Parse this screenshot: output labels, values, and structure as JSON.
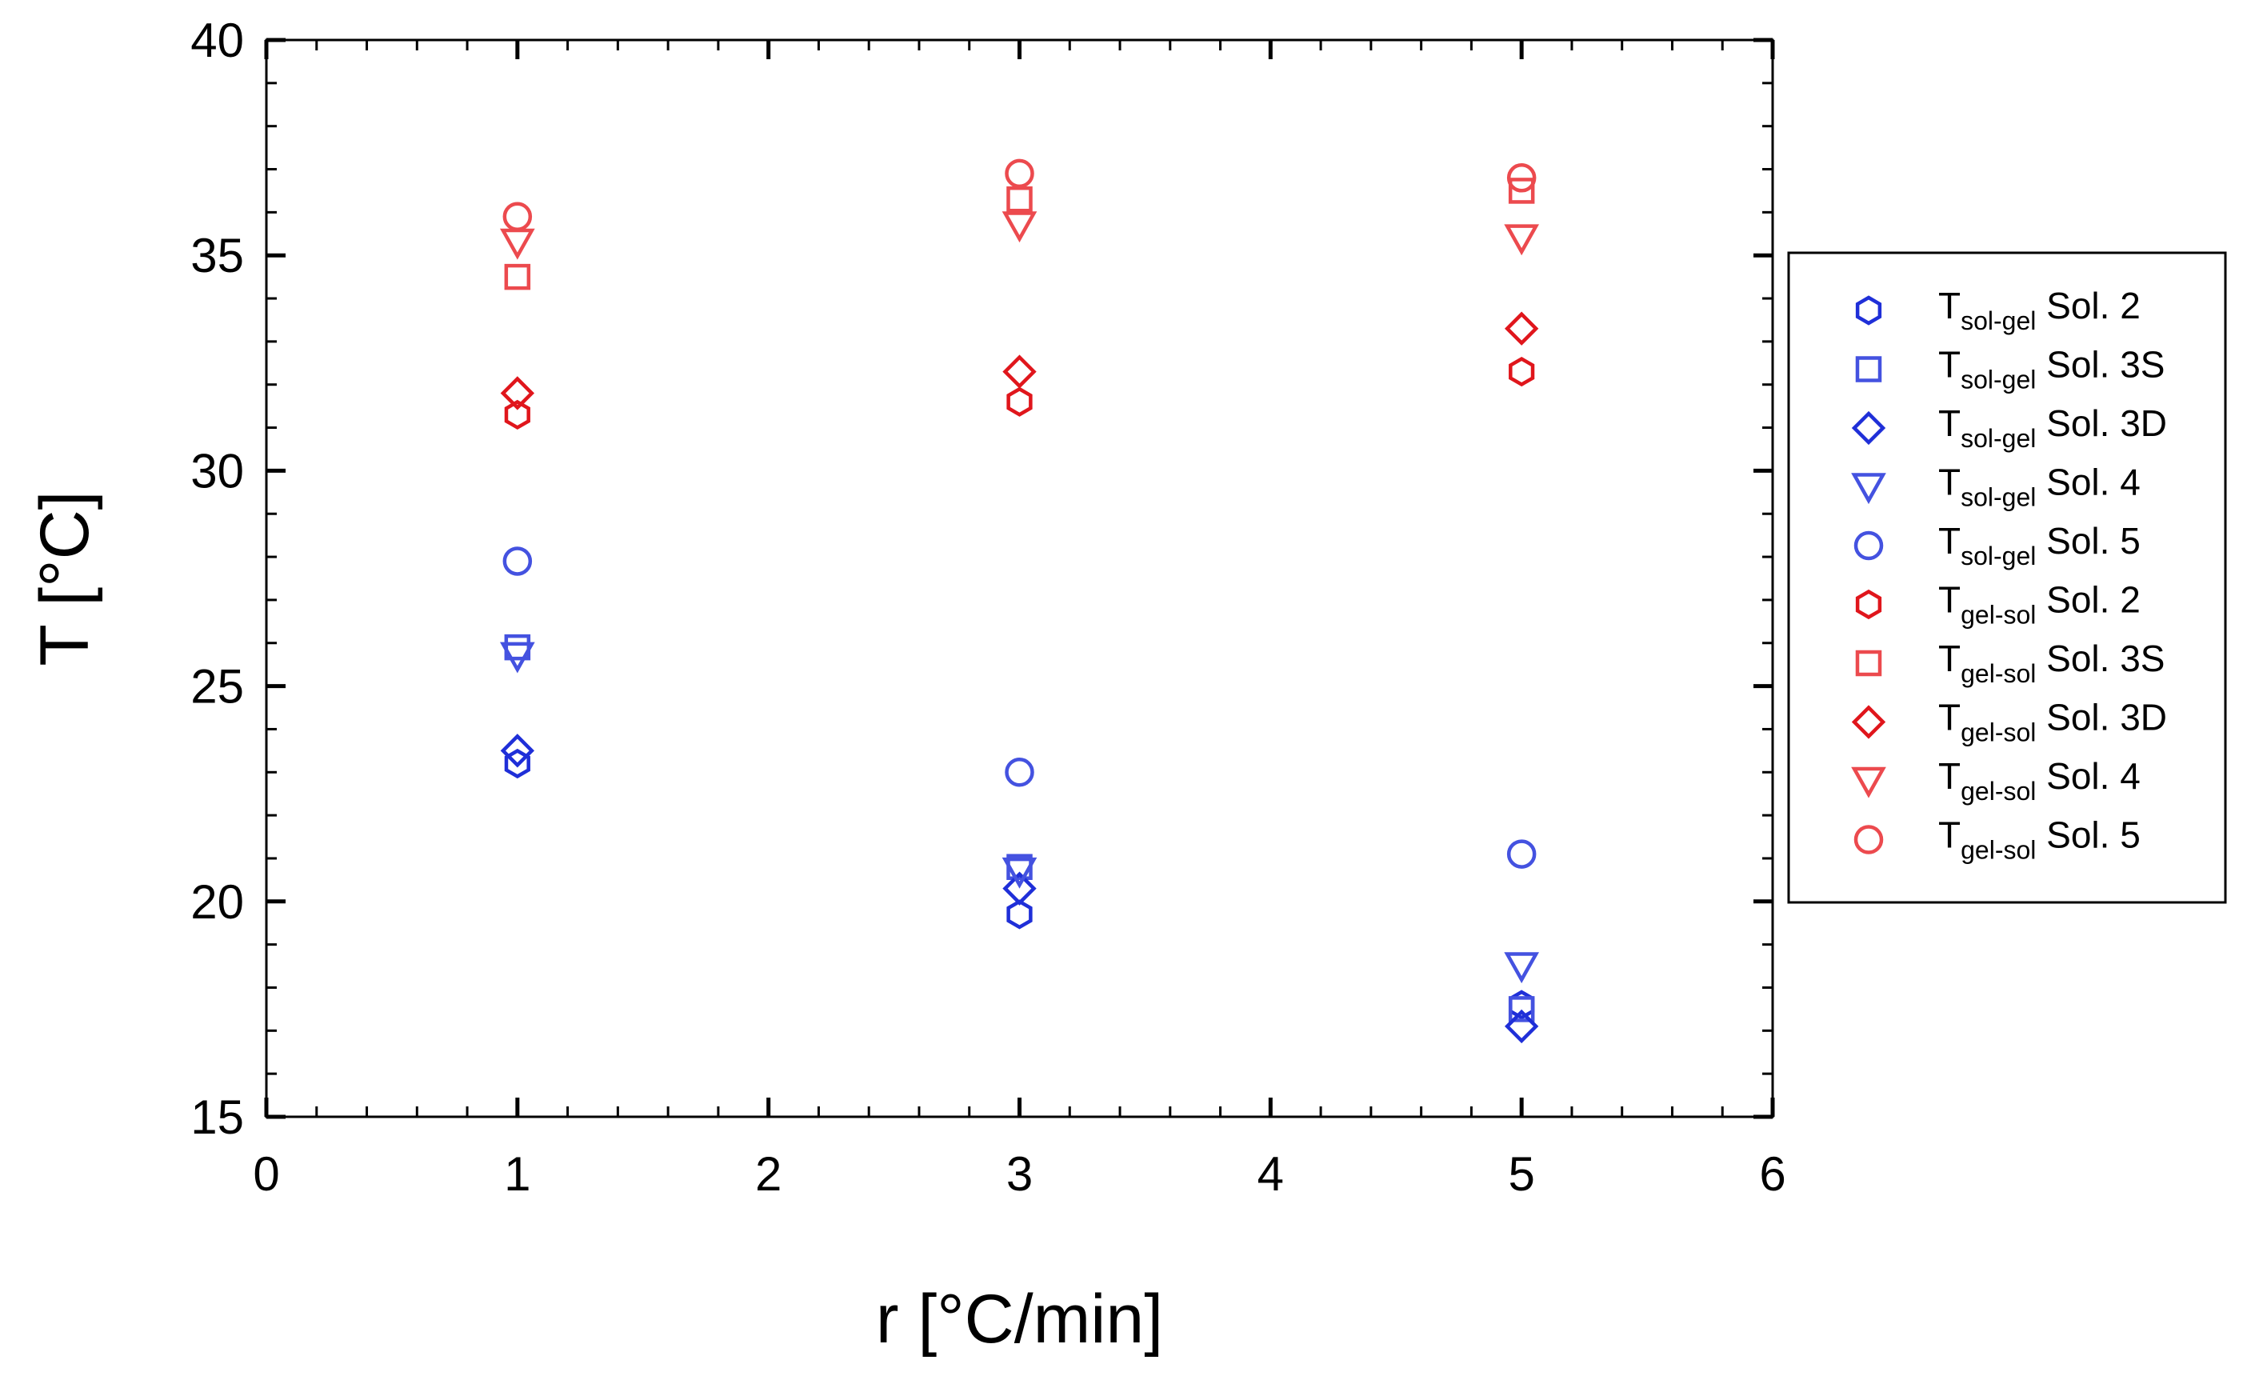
{
  "chart_data": {
    "type": "scatter",
    "title": "",
    "xlabel": "r [°C/min]",
    "ylabel": "T [°C]",
    "xlim": [
      0,
      6
    ],
    "ylim": [
      15,
      40
    ],
    "x_ticks": [
      0,
      1,
      2,
      3,
      4,
      5,
      6
    ],
    "y_ticks": [
      15,
      20,
      25,
      30,
      35,
      40
    ],
    "grid": false,
    "legend_position": "right",
    "series": [
      {
        "name": "T_sol-gel Sol. 2",
        "prefix": "T",
        "subscript": "sol-gel",
        "suffix": " Sol. 2",
        "marker": "hexagon",
        "color": "#1f2fd8",
        "x": [
          1,
          3,
          5
        ],
        "y": [
          23.2,
          19.7,
          17.6
        ]
      },
      {
        "name": "T_sol-gel Sol. 3S",
        "prefix": "T",
        "subscript": "sol-gel",
        "suffix": " Sol. 3S",
        "marker": "square",
        "color": "#4452e0",
        "x": [
          1,
          3,
          5
        ],
        "y": [
          25.9,
          20.8,
          17.5
        ]
      },
      {
        "name": "T_sol-gel Sol. 3D",
        "prefix": "T",
        "subscript": "sol-gel",
        "suffix": " Sol. 3D",
        "marker": "diamond",
        "color": "#1f2fd8",
        "x": [
          1,
          3,
          5
        ],
        "y": [
          23.5,
          20.3,
          17.1
        ]
      },
      {
        "name": "T_sol-gel Sol. 4",
        "prefix": "T",
        "subscript": "sol-gel",
        "suffix": " Sol. 4",
        "marker": "triangle-down",
        "color": "#4452e0",
        "x": [
          1,
          3,
          5
        ],
        "y": [
          25.7,
          20.7,
          18.5
        ]
      },
      {
        "name": "T_sol-gel Sol. 5",
        "prefix": "T",
        "subscript": "sol-gel",
        "suffix": " Sol. 5",
        "marker": "circle",
        "color": "#4452e0",
        "x": [
          1,
          3,
          5
        ],
        "y": [
          27.9,
          23.0,
          21.1
        ]
      },
      {
        "name": "T_gel-sol Sol. 2",
        "prefix": "T",
        "subscript": "gel-sol",
        "suffix": " Sol. 2",
        "marker": "hexagon",
        "color": "#e0161c",
        "x": [
          1,
          3,
          5
        ],
        "y": [
          31.3,
          31.6,
          32.3
        ]
      },
      {
        "name": "T_gel-sol Sol. 3S",
        "prefix": "T",
        "subscript": "gel-sol",
        "suffix": " Sol. 3S",
        "marker": "square",
        "color": "#ec4a4e",
        "x": [
          1,
          3,
          5
        ],
        "y": [
          34.5,
          36.3,
          36.5
        ]
      },
      {
        "name": "T_gel-sol Sol. 3D",
        "prefix": "T",
        "subscript": "gel-sol",
        "suffix": " Sol. 3D",
        "marker": "diamond",
        "color": "#e0161c",
        "x": [
          1,
          3,
          5
        ],
        "y": [
          31.8,
          32.3,
          33.3
        ]
      },
      {
        "name": "T_gel-sol Sol. 4",
        "prefix": "T",
        "subscript": "gel-sol",
        "suffix": " Sol. 4",
        "marker": "triangle-down",
        "color": "#ec4a4e",
        "x": [
          1,
          3,
          5
        ],
        "y": [
          35.3,
          35.7,
          35.4
        ]
      },
      {
        "name": "T_gel-sol Sol. 5",
        "prefix": "T",
        "subscript": "gel-sol",
        "suffix": " Sol. 5",
        "marker": "circle",
        "color": "#ec4a4e",
        "x": [
          1,
          3,
          5
        ],
        "y": [
          35.9,
          36.9,
          36.8
        ]
      }
    ]
  }
}
